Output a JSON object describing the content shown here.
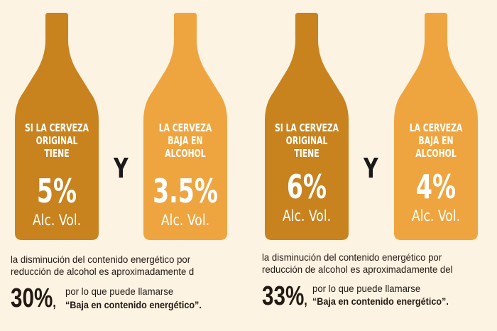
{
  "colors": {
    "background": "#fdf3e2",
    "bottle_original": "#c8821e",
    "bottle_low_alcohol": "#efa53f",
    "text": "#231a14"
  },
  "panels": [
    {
      "original": {
        "lines": [
          "SI LA CERVEZA",
          "ORIGINAL",
          "TIENE"
        ],
        "percent": "5%",
        "unit": "Alc. Vol."
      },
      "connector": "Y",
      "reduced": {
        "lines": [
          "LA CERVEZA",
          "BAJA EN",
          "ALCOHOL"
        ],
        "percent": "3.5%",
        "unit": "Alc. Vol."
      },
      "description": [
        "la  disminución del contenido energético por",
        "reducción de alcohol es aproximadamente d"
      ],
      "reduction": "30%",
      "comma": ",",
      "phrase": "por lo que puede llamarse",
      "claim": "“Baja en contenido energético”."
    },
    {
      "original": {
        "lines": [
          "SI LA CERVEZA",
          "ORIGINAL",
          "TIENE"
        ],
        "percent": "6%",
        "unit": "Alc. Vol."
      },
      "connector": "Y",
      "reduced": {
        "lines": [
          "LA CERVEZA",
          "BAJA EN",
          "ALCOHOL"
        ],
        "percent": "4%",
        "unit": "Alc. Vol."
      },
      "description": [
        "la  disminución del contenido energético por",
        "reducción de alcohol es aproximadamente del"
      ],
      "reduction": "33%",
      "comma": ",",
      "phrase": "por lo que puede llamarse",
      "claim": "“Baja en contenido energético”."
    }
  ]
}
